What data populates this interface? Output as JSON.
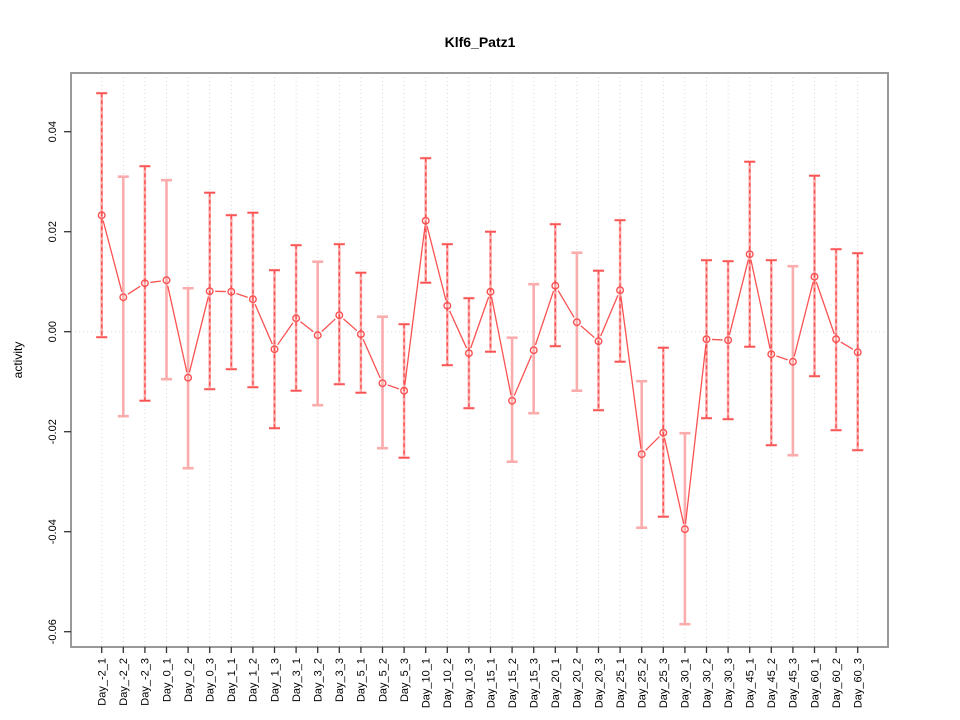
{
  "title": "Klf6_Patz1",
  "colors": {
    "series_red": "#fa5252",
    "errorbar_pink": "#fbacac",
    "frame_gray": "#999999",
    "grid_gray": "#d9d9d9",
    "tick_black": "#333333",
    "background": "#ffffff"
  },
  "chart_data": {
    "type": "line",
    "title": "Klf6_Patz1",
    "xlabel": "",
    "ylabel": "activity",
    "ylim": [
      -0.063,
      0.052
    ],
    "yticks": [
      0.04,
      0.02,
      0.0,
      -0.02,
      -0.04,
      -0.06
    ],
    "grid": "vertical dotted gridline at every category; dotted horizontal zero line",
    "legend": "none",
    "marker": "open-circle",
    "categories": [
      "Day_-2_1",
      "Day_-2_2",
      "Day_-2_3",
      "Day_0_1",
      "Day_0_2",
      "Day_0_3",
      "Day_1_1",
      "Day_1_2",
      "Day_1_3",
      "Day_3_1",
      "Day_3_2",
      "Day_3_3",
      "Day_5_1",
      "Day_5_2",
      "Day_5_3",
      "Day_10_1",
      "Day_10_2",
      "Day_10_3",
      "Day_15_1",
      "Day_15_2",
      "Day_15_3",
      "Day_20_1",
      "Day_20_2",
      "Day_20_3",
      "Day_25_1",
      "Day_25_2",
      "Day_25_3",
      "Day_30_1",
      "Day_30_2",
      "Day_30_3",
      "Day_45_1",
      "Day_45_2",
      "Day_45_3",
      "Day_60_1",
      "Day_60_2",
      "Day_60_3"
    ],
    "series": [
      {
        "name": "activity",
        "values": [
          0.0233,
          0.0069,
          0.0097,
          0.0103,
          -0.0092,
          0.0081,
          0.008,
          0.0065,
          -0.0035,
          0.0027,
          -0.0007,
          0.0033,
          -0.0005,
          -0.0103,
          -0.0118,
          0.0222,
          0.0052,
          -0.0043,
          0.008,
          -0.0138,
          -0.0037,
          0.0092,
          0.0019,
          -0.0019,
          0.0083,
          -0.0245,
          -0.0202,
          -0.0395,
          -0.0015,
          -0.0017,
          0.0155,
          -0.0045,
          -0.006,
          0.011,
          -0.0015,
          -0.0041
        ],
        "err_hi": [
          0.0477,
          0.031,
          0.0331,
          0.0303,
          0.0087,
          0.0278,
          0.0233,
          0.0238,
          0.0123,
          0.0173,
          0.014,
          0.0175,
          0.0118,
          0.003,
          0.0015,
          0.0347,
          0.0175,
          0.0067,
          0.02,
          -0.0012,
          0.0095,
          0.0215,
          0.0158,
          0.0122,
          0.0223,
          -0.0099,
          -0.0032,
          -0.0203,
          0.0143,
          0.0141,
          0.034,
          0.0143,
          0.0131,
          0.0312,
          0.0165,
          0.0157
        ],
        "err_lo": [
          -0.0011,
          -0.0169,
          -0.0138,
          -0.0095,
          -0.0273,
          -0.0115,
          -0.0075,
          -0.0111,
          -0.0193,
          -0.0118,
          -0.0147,
          -0.0105,
          -0.0122,
          -0.0233,
          -0.0252,
          0.0098,
          -0.0067,
          -0.0153,
          -0.004,
          -0.026,
          -0.0163,
          -0.0029,
          -0.0118,
          -0.0157,
          -0.006,
          -0.0392,
          -0.037,
          -0.0585,
          -0.0173,
          -0.0175,
          -0.003,
          -0.0227,
          -0.0247,
          -0.0089,
          -0.0197,
          -0.0237
        ],
        "bar_styles": [
          "dashed",
          "solid",
          "dashed",
          "solid",
          "solid",
          "dashed",
          "dashed",
          "dashed",
          "dashed",
          "dashed",
          "solid",
          "dashed",
          "dashed",
          "solid",
          "dashed",
          "dashed",
          "dashed",
          "dashed",
          "dashed",
          "solid",
          "solid",
          "dashed",
          "solid",
          "dashed",
          "dashed",
          "solid",
          "dashed",
          "solid",
          "dashed",
          "dashed",
          "dashed",
          "dashed",
          "solid",
          "dashed",
          "dashed",
          "dashed"
        ]
      }
    ]
  }
}
